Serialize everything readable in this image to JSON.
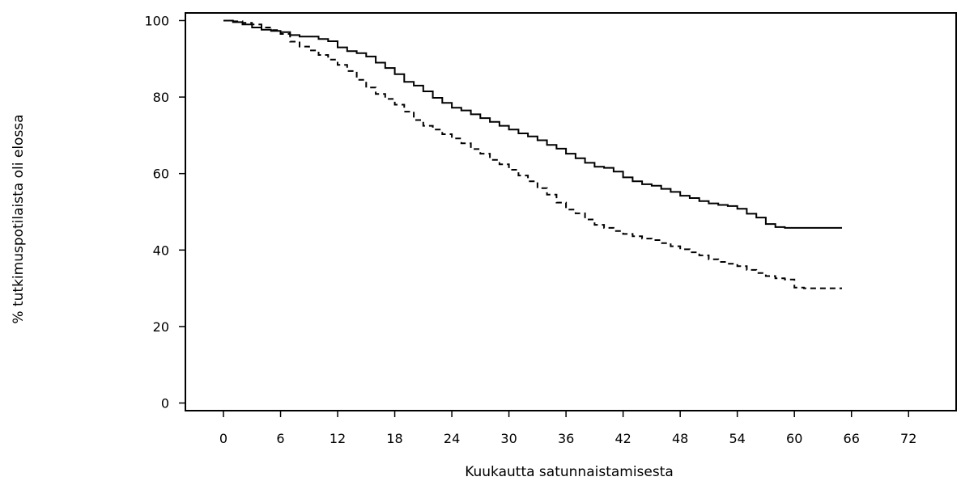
{
  "chart_data": {
    "type": "line",
    "title": "",
    "xlabel": "Kuukautta satunnaistamisesta",
    "ylabel": "% tutkimuspotilaista oli elossa",
    "xlim": [
      -4,
      77
    ],
    "ylim": [
      -2,
      102
    ],
    "x_ticks": [
      0,
      6,
      12,
      18,
      24,
      30,
      36,
      42,
      48,
      54,
      60,
      66,
      72
    ],
    "y_ticks": [
      0,
      20,
      40,
      60,
      80,
      100
    ],
    "grid": false,
    "legend": "none",
    "series": [
      {
        "style": "solid",
        "color": "#000000",
        "points": [
          [
            0,
            100
          ],
          [
            1,
            99.6
          ],
          [
            2,
            99
          ],
          [
            3,
            98.2
          ],
          [
            4,
            97.6
          ],
          [
            5,
            97.3
          ],
          [
            6,
            97
          ],
          [
            7,
            96.2
          ],
          [
            8,
            95.8
          ],
          [
            10,
            95.2
          ],
          [
            11,
            94.6
          ],
          [
            12,
            93
          ],
          [
            13,
            92
          ],
          [
            14,
            91.5
          ],
          [
            15,
            90.6
          ],
          [
            16,
            89
          ],
          [
            17,
            87.6
          ],
          [
            18,
            86
          ],
          [
            19,
            84
          ],
          [
            20,
            83
          ],
          [
            21,
            81.5
          ],
          [
            22,
            79.8
          ],
          [
            23,
            78.5
          ],
          [
            24,
            77.2
          ],
          [
            25,
            76.5
          ],
          [
            26,
            75.5
          ],
          [
            27,
            74.5
          ],
          [
            28,
            73.5
          ],
          [
            29,
            72.5
          ],
          [
            30,
            71.5
          ],
          [
            31,
            70.5
          ],
          [
            32,
            69.7
          ],
          [
            33,
            68.7
          ],
          [
            34,
            67.5
          ],
          [
            35,
            66.5
          ],
          [
            36,
            65.2
          ],
          [
            37,
            64
          ],
          [
            38,
            62.8
          ],
          [
            39,
            61.8
          ],
          [
            40,
            61.5
          ],
          [
            41,
            60.5
          ],
          [
            42,
            59
          ],
          [
            43,
            58
          ],
          [
            44,
            57.2
          ],
          [
            45,
            56.8
          ],
          [
            46,
            56
          ],
          [
            47,
            55.2
          ],
          [
            48,
            54.2
          ],
          [
            49,
            53.6
          ],
          [
            50,
            52.8
          ],
          [
            51,
            52.2
          ],
          [
            52,
            51.8
          ],
          [
            53,
            51.5
          ],
          [
            54,
            50.8
          ],
          [
            55,
            49.5
          ],
          [
            56,
            48.5
          ],
          [
            57,
            46.8
          ],
          [
            58,
            46
          ],
          [
            59,
            45.8
          ],
          [
            65,
            45.8
          ]
        ]
      },
      {
        "style": "dashed",
        "color": "#000000",
        "points": [
          [
            0,
            100
          ],
          [
            1,
            99.8
          ],
          [
            2,
            99.4
          ],
          [
            3,
            99
          ],
          [
            4,
            98.2
          ],
          [
            5,
            97.5
          ],
          [
            6,
            96.5
          ],
          [
            7,
            94.5
          ],
          [
            8,
            93.2
          ],
          [
            9,
            92.2
          ],
          [
            10,
            91
          ],
          [
            11,
            89.8
          ],
          [
            12,
            88.4
          ],
          [
            13,
            86.8
          ],
          [
            14,
            84.5
          ],
          [
            15,
            82.5
          ],
          [
            16,
            80.8
          ],
          [
            17,
            79.5
          ],
          [
            18,
            78
          ],
          [
            19,
            76.2
          ],
          [
            20,
            74
          ],
          [
            21,
            72.5
          ],
          [
            22,
            71.5
          ],
          [
            23,
            70.3
          ],
          [
            24,
            69.2
          ],
          [
            25,
            67.9
          ],
          [
            26,
            66.4
          ],
          [
            27,
            65.2
          ],
          [
            28,
            63.6
          ],
          [
            29,
            62.4
          ],
          [
            30,
            61
          ],
          [
            31,
            59.5
          ],
          [
            32,
            58
          ],
          [
            33,
            56.2
          ],
          [
            34,
            54.5
          ],
          [
            35,
            52.4
          ],
          [
            36,
            50.6
          ],
          [
            37,
            49.6
          ],
          [
            38,
            48
          ],
          [
            39,
            46.6
          ],
          [
            40,
            45.8
          ],
          [
            41,
            45
          ],
          [
            42,
            44.2
          ],
          [
            43,
            43.6
          ],
          [
            44,
            43
          ],
          [
            45,
            42.6
          ],
          [
            46,
            41.8
          ],
          [
            47,
            41
          ],
          [
            48,
            40.2
          ],
          [
            49,
            39.4
          ],
          [
            50,
            38.6
          ],
          [
            51,
            37.6
          ],
          [
            52,
            36.9
          ],
          [
            53,
            36.4
          ],
          [
            54,
            35.8
          ],
          [
            55,
            34.8
          ],
          [
            56,
            34
          ],
          [
            57,
            33.2
          ],
          [
            58,
            32.6
          ],
          [
            59,
            32.3
          ],
          [
            60,
            30.2
          ],
          [
            61,
            30
          ],
          [
            65,
            30
          ]
        ]
      }
    ]
  }
}
